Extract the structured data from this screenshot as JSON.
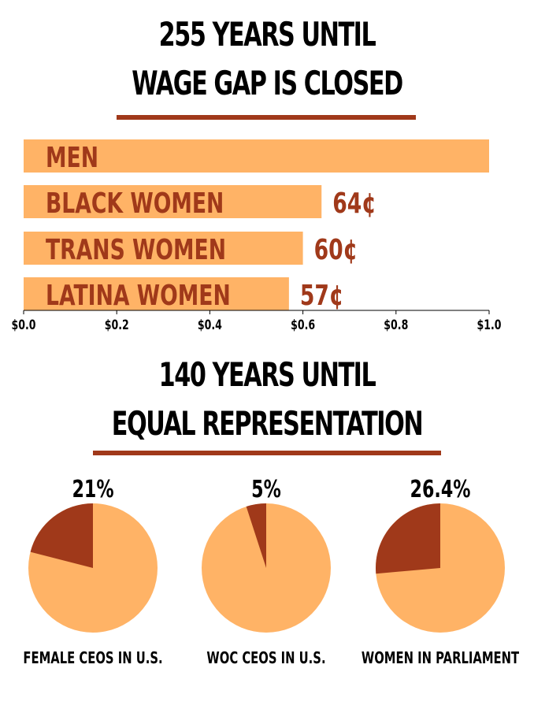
{
  "colors": {
    "accent": "#a0391a",
    "bar": "#ffb366",
    "pie_base": "#ffb366",
    "pie_slice": "#a0391a",
    "text": "#000000"
  },
  "wage": {
    "title_line1": "255 YEARS UNTIL",
    "title_line2": "WAGE GAP IS CLOSED"
  },
  "representation": {
    "title_line1": "140 YEARS UNTIL",
    "title_line2": "EQUAL REPRESENTATION"
  },
  "chart_data": [
    {
      "type": "bar",
      "orientation": "horizontal",
      "categories": [
        "MEN",
        "BLACK WOMEN",
        "TRANS WOMEN",
        "LATINA WOMEN"
      ],
      "values": [
        1.0,
        0.64,
        0.6,
        0.57
      ],
      "data_labels": [
        "",
        "64¢",
        "60¢",
        "57¢"
      ],
      "xlim": [
        0,
        1.0
      ],
      "ticks": [
        0,
        0.2,
        0.4,
        0.6,
        0.8,
        1.0
      ],
      "tick_labels": [
        "$0.0",
        "$0.2",
        "$0.4",
        "$0.6",
        "$0.8",
        "$1.0"
      ],
      "grid": false
    },
    {
      "type": "pie",
      "label": "FEMALE CEOS IN U.S.",
      "value_label": "21%",
      "value": 21
    },
    {
      "type": "pie",
      "label": "WOC CEOS IN U.S.",
      "value_label": "5%",
      "value": 5
    },
    {
      "type": "pie",
      "label": "WOMEN IN PARLIAMENT",
      "value_label": "26.4%",
      "value": 26.4
    }
  ]
}
